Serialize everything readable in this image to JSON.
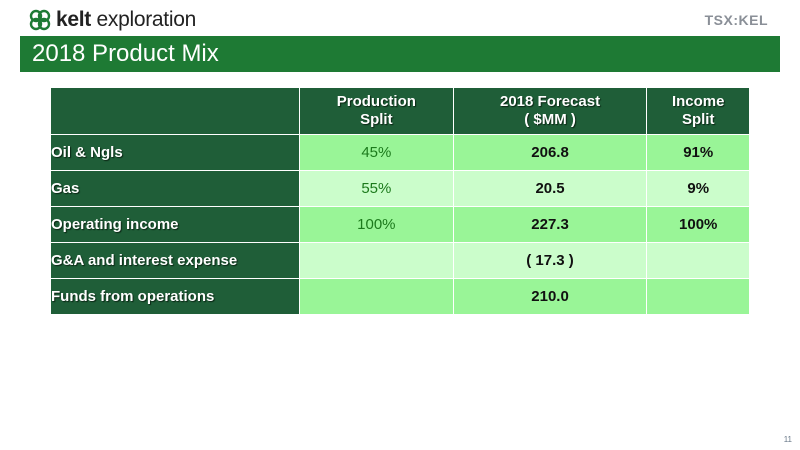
{
  "header": {
    "logo_bold": "kelt",
    "logo_rest": " exploration",
    "exchange_badge": "TSX:KEL",
    "title": "2018 Product Mix"
  },
  "table": {
    "columns": [
      {
        "line1": "Production",
        "line2": "Split"
      },
      {
        "line1": "2018 Forecast",
        "line2": "( $MM )"
      },
      {
        "line1": "Income",
        "line2": "Split"
      }
    ],
    "rows": [
      {
        "label": "Oil & Ngls",
        "production_split": "45%",
        "forecast": "206.8",
        "income_split": "91%"
      },
      {
        "label": "Gas",
        "production_split": "55%",
        "forecast": "20.5",
        "income_split": "9%"
      },
      {
        "label": "Operating income",
        "production_split": "100%",
        "forecast": "227.3",
        "income_split": "100%"
      },
      {
        "label": "G&A and interest expense",
        "production_split": "",
        "forecast": "( 17.3 )",
        "income_split": ""
      },
      {
        "label": "Funds from operations",
        "production_split": "",
        "forecast": "210.0",
        "income_split": ""
      }
    ]
  },
  "footer": {
    "page_number": "11"
  },
  "colors": {
    "title_bar": "#1e7a34",
    "header_cell": "#1f5e38",
    "row_light": "#cbfdcb",
    "row_medium": "#99f597"
  }
}
